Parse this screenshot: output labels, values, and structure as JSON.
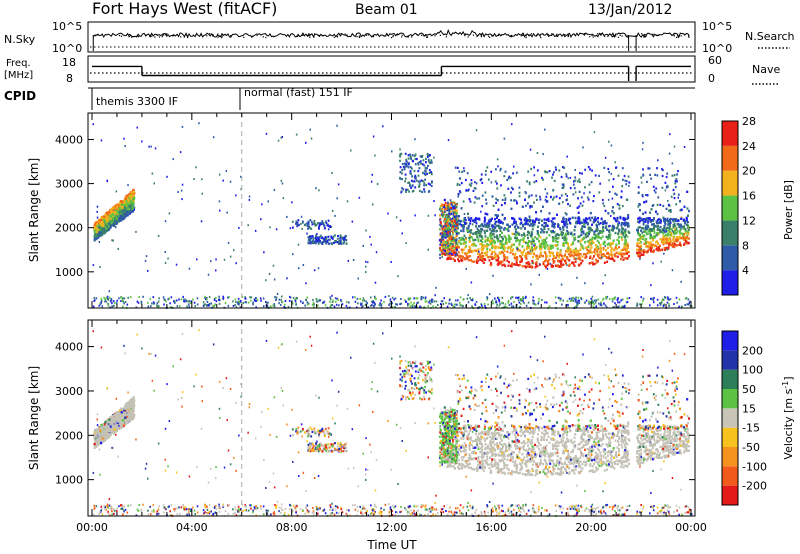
{
  "header": {
    "station": "Fort Hays West (fitACF)",
    "beam": "Beam 01",
    "date": "13/Jan/2012"
  },
  "status_panels": {
    "nsky_label": "N.Sky",
    "nsky_ticks": [
      "10^5",
      "10^0"
    ],
    "nsearch_label": "N.Search",
    "nsearch_ticks": [
      "10^5",
      "10^0"
    ],
    "freq_label_line1": "Freq.",
    "freq_label_line2": "[MHz]",
    "freq_ticks": [
      "18",
      "8"
    ],
    "nave_label": "Nave",
    "nave_ticks": [
      "60",
      "0"
    ],
    "cpid_label": "CPID",
    "cpid_modes": [
      {
        "name": "themis 3300 IF",
        "start_hour": 0
      },
      {
        "name": "normal (fast) 151 IF",
        "start_hour": 6
      }
    ],
    "freq_segments_mhz": [
      {
        "start": 0,
        "end": 2,
        "value": 14
      },
      {
        "start": 2,
        "end": 14,
        "value": 10.5
      },
      {
        "start": 14,
        "end": 21.5,
        "value": 14
      },
      {
        "start": 21.8,
        "end": 24,
        "value": 14
      }
    ],
    "data_gaps_hours": [
      [
        21.5,
        21.8
      ]
    ]
  },
  "chart_data": [
    {
      "type": "heatmap",
      "name": "power",
      "ylabel": "Slant Range [km]",
      "yticks": [
        1000,
        2000,
        3000,
        4000
      ],
      "ylim": [
        180,
        4600
      ],
      "xlim": [
        0,
        24
      ],
      "colorbar_label": "Power [dB]",
      "colorbar_ticks": [
        "4",
        "8",
        "12",
        "16",
        "20",
        "24",
        "28"
      ],
      "colorbar_colors": [
        "#1e1ee6",
        "#2e5aa8",
        "#3a7f6a",
        "#5cc243",
        "#f2b21e",
        "#f06a1a",
        "#e82018"
      ],
      "colorbar_range": [
        0,
        30
      ]
    },
    {
      "type": "heatmap",
      "name": "velocity",
      "ylabel": "Slant Range [km]",
      "yticks": [
        1000,
        2000,
        3000,
        4000
      ],
      "ylim": [
        180,
        4600
      ],
      "xlim": [
        0,
        24
      ],
      "xlabel": "Time UT",
      "xticks": [
        "00:00",
        "04:00",
        "08:00",
        "12:00",
        "16:00",
        "20:00",
        "00:00"
      ],
      "colorbar_label": "Velocity [m s",
      "colorbar_label_sup": "-1",
      "colorbar_label_end": "]",
      "colorbar_ticks": [
        "-200",
        "-100",
        "-50",
        "-15",
        "15",
        "50",
        "100",
        "200"
      ],
      "colorbar_colors": [
        "#e41a1a",
        "#f25a1c",
        "#f5921e",
        "#f8c21e",
        "#c8c4b8",
        "#5cc243",
        "#2d7f5a",
        "#2233a8",
        "#1e1ee6"
      ],
      "ground_scatter_color": "#c4c2b6"
    }
  ]
}
